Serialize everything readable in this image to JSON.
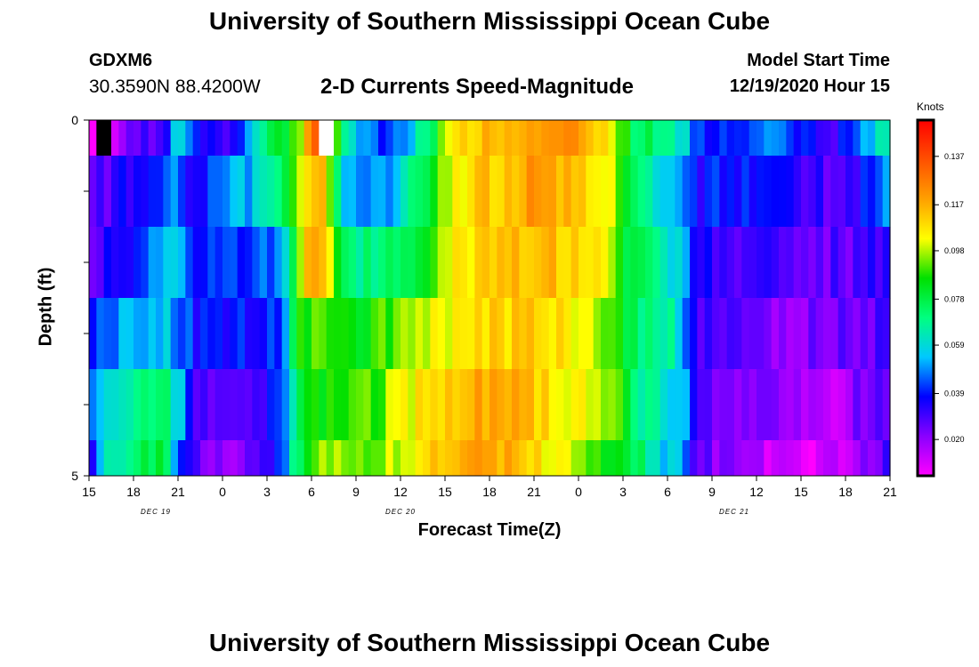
{
  "header": {
    "title_top": "University of Southern Mississippi Ocean Cube",
    "station_id": "GDXM6",
    "coords": "30.3590N 88.4200W",
    "subtitle": "2-D Currents Speed-Magnitude",
    "start_label": "Model Start Time",
    "start_value": "12/19/2020 Hour 15"
  },
  "footer": {
    "title_bottom": "University of Southern Mississippi Ocean Cube"
  },
  "chart_data": {
    "type": "heatmap",
    "xlabel": "Forecast Time(Z)",
    "ylabel": "Depth (ft)",
    "y_ticks": [
      "0",
      "5"
    ],
    "ylim": [
      0,
      5
    ],
    "x_tick_labels": [
      "15",
      "18",
      "21",
      "0",
      "3",
      "6",
      "9",
      "12",
      "15",
      "18",
      "21",
      "0",
      "3",
      "6",
      "9",
      "12",
      "15",
      "18",
      "21"
    ],
    "date_labels": [
      {
        "label": "DEC 19",
        "at_tick": 1.5
      },
      {
        "label": "DEC 20",
        "at_tick": 7
      },
      {
        "label": "DEC 21",
        "at_tick": 14.5
      }
    ],
    "colorbar": {
      "units": "Knots",
      "ticks": [
        "0.137",
        "0.117",
        "0.098",
        "0.078",
        "0.059",
        "0.039",
        "0.020"
      ],
      "tick_values": [
        0.137,
        0.117,
        0.098,
        0.078,
        0.059,
        0.039,
        0.02
      ],
      "range": [
        0.005,
        0.152
      ],
      "colors": [
        "#ff00ff",
        "#8a00ff",
        "#0000ff",
        "#00c8ff",
        "#00ff80",
        "#00e000",
        "#ffff00",
        "#ffa000",
        "#ff5000",
        "#ff0000"
      ]
    },
    "time_hours_range": [
      0,
      54
    ],
    "rows_top_to_bottom": [
      {
        "depth_band": [
          0,
          0.5
        ],
        "knots": [
          [
            0,
            0.005
          ],
          [
            1,
            0.009
          ],
          [
            3,
            0.028
          ],
          [
            5,
            0.03
          ],
          [
            6,
            0.06
          ],
          [
            7,
            0.04
          ],
          [
            9,
            0.03
          ],
          [
            11,
            0.055
          ],
          [
            12,
            0.07
          ],
          [
            14,
            0.09
          ],
          [
            15,
            0.125
          ],
          [
            16,
            0.155
          ],
          [
            17,
            0.07
          ],
          [
            18,
            0.055
          ],
          [
            19,
            0.05
          ],
          [
            20,
            0.035
          ],
          [
            21,
            0.05
          ],
          [
            22,
            0.06
          ],
          [
            23,
            0.07
          ],
          [
            24,
            0.1
          ],
          [
            25,
            0.11
          ],
          [
            28,
            0.115
          ],
          [
            30,
            0.12
          ],
          [
            33,
            0.12
          ],
          [
            35,
            0.11
          ],
          [
            36,
            0.09
          ],
          [
            37,
            0.07
          ],
          [
            38,
            0.075
          ],
          [
            39,
            0.07
          ],
          [
            40,
            0.06
          ],
          [
            41,
            0.045
          ],
          [
            42,
            0.038
          ],
          [
            44,
            0.045
          ],
          [
            46,
            0.05
          ],
          [
            48,
            0.04
          ],
          [
            50,
            0.03
          ],
          [
            52,
            0.045
          ],
          [
            54,
            0.07
          ]
        ]
      },
      {
        "depth_band": [
          0.5,
          1.5
        ],
        "knots": [
          [
            0,
            0.02
          ],
          [
            1,
            0.028
          ],
          [
            3,
            0.035
          ],
          [
            5,
            0.04
          ],
          [
            6,
            0.05
          ],
          [
            7,
            0.035
          ],
          [
            9,
            0.045
          ],
          [
            11,
            0.055
          ],
          [
            12,
            0.06
          ],
          [
            14,
            0.095
          ],
          [
            15,
            0.12
          ],
          [
            16,
            0.11
          ],
          [
            17,
            0.06
          ],
          [
            18,
            0.05
          ],
          [
            20,
            0.05
          ],
          [
            21,
            0.06
          ],
          [
            23,
            0.08
          ],
          [
            24,
            0.1
          ],
          [
            26,
            0.11
          ],
          [
            30,
            0.12
          ],
          [
            33,
            0.115
          ],
          [
            35,
            0.105
          ],
          [
            36,
            0.085
          ],
          [
            37,
            0.07
          ],
          [
            38,
            0.065
          ],
          [
            40,
            0.05
          ],
          [
            41,
            0.035
          ],
          [
            43,
            0.04
          ],
          [
            45,
            0.035
          ],
          [
            48,
            0.03
          ],
          [
            51,
            0.03
          ],
          [
            53,
            0.04
          ],
          [
            54,
            0.055
          ]
        ]
      },
      {
        "depth_band": [
          1.5,
          2.5
        ],
        "knots": [
          [
            0,
            0.015
          ],
          [
            1,
            0.038
          ],
          [
            3,
            0.04
          ],
          [
            5,
            0.055
          ],
          [
            6,
            0.06
          ],
          [
            7,
            0.04
          ],
          [
            9,
            0.04
          ],
          [
            11,
            0.04
          ],
          [
            13,
            0.05
          ],
          [
            14,
            0.09
          ],
          [
            15,
            0.12
          ],
          [
            16,
            0.115
          ],
          [
            17,
            0.075
          ],
          [
            18,
            0.07
          ],
          [
            20,
            0.07
          ],
          [
            22,
            0.08
          ],
          [
            24,
            0.1
          ],
          [
            26,
            0.11
          ],
          [
            30,
            0.115
          ],
          [
            33,
            0.11
          ],
          [
            35,
            0.1
          ],
          [
            36,
            0.08
          ],
          [
            37,
            0.075
          ],
          [
            38,
            0.07
          ],
          [
            40,
            0.055
          ],
          [
            41,
            0.035
          ],
          [
            43,
            0.03
          ],
          [
            46,
            0.028
          ],
          [
            49,
            0.025
          ],
          [
            52,
            0.028
          ],
          [
            54,
            0.035
          ]
        ]
      },
      {
        "depth_band": [
          2.5,
          3.5
        ],
        "knots": [
          [
            0,
            0.035
          ],
          [
            1,
            0.045
          ],
          [
            3,
            0.055
          ],
          [
            5,
            0.055
          ],
          [
            6,
            0.05
          ],
          [
            7,
            0.04
          ],
          [
            9,
            0.035
          ],
          [
            11,
            0.04
          ],
          [
            13,
            0.045
          ],
          [
            14,
            0.085
          ],
          [
            15,
            0.09
          ],
          [
            16,
            0.085
          ],
          [
            18,
            0.085
          ],
          [
            20,
            0.09
          ],
          [
            22,
            0.1
          ],
          [
            24,
            0.105
          ],
          [
            27,
            0.11
          ],
          [
            30,
            0.11
          ],
          [
            33,
            0.105
          ],
          [
            35,
            0.095
          ],
          [
            36,
            0.085
          ],
          [
            37,
            0.07
          ],
          [
            39,
            0.07
          ],
          [
            40,
            0.05
          ],
          [
            41,
            0.03
          ],
          [
            43,
            0.025
          ],
          [
            46,
            0.022
          ],
          [
            49,
            0.022
          ],
          [
            52,
            0.025
          ],
          [
            54,
            0.03
          ]
        ]
      },
      {
        "depth_band": [
          3.5,
          4.5
        ],
        "knots": [
          [
            0,
            0.04
          ],
          [
            1,
            0.06
          ],
          [
            3,
            0.07
          ],
          [
            5,
            0.075
          ],
          [
            6,
            0.06
          ],
          [
            7,
            0.03
          ],
          [
            9,
            0.025
          ],
          [
            11,
            0.03
          ],
          [
            13,
            0.04
          ],
          [
            14,
            0.075
          ],
          [
            15,
            0.085
          ],
          [
            17,
            0.09
          ],
          [
            19,
            0.09
          ],
          [
            21,
            0.1
          ],
          [
            23,
            0.11
          ],
          [
            26,
            0.12
          ],
          [
            29,
            0.115
          ],
          [
            32,
            0.105
          ],
          [
            34,
            0.1
          ],
          [
            36,
            0.09
          ],
          [
            37,
            0.07
          ],
          [
            38,
            0.065
          ],
          [
            40,
            0.055
          ],
          [
            41,
            0.03
          ],
          [
            43,
            0.025
          ],
          [
            45,
            0.02
          ],
          [
            48,
            0.015
          ],
          [
            50,
            0.015
          ],
          [
            52,
            0.022
          ],
          [
            54,
            0.028
          ]
        ]
      },
      {
        "depth_band": [
          4.5,
          5
        ],
        "knots": [
          [
            0,
            0.03
          ],
          [
            1,
            0.06
          ],
          [
            3,
            0.075
          ],
          [
            5,
            0.08
          ],
          [
            6,
            0.05
          ],
          [
            7,
            0.025
          ],
          [
            9,
            0.02
          ],
          [
            11,
            0.025
          ],
          [
            13,
            0.04
          ],
          [
            14,
            0.075
          ],
          [
            15,
            0.09
          ],
          [
            17,
            0.1
          ],
          [
            19,
            0.095
          ],
          [
            21,
            0.1
          ],
          [
            23,
            0.11
          ],
          [
            26,
            0.12
          ],
          [
            29,
            0.115
          ],
          [
            32,
            0.1
          ],
          [
            34,
            0.09
          ],
          [
            36,
            0.085
          ],
          [
            37,
            0.075
          ],
          [
            38,
            0.06
          ],
          [
            40,
            0.05
          ],
          [
            41,
            0.028
          ],
          [
            43,
            0.02
          ],
          [
            45,
            0.015
          ],
          [
            48,
            0.005
          ],
          [
            50,
            0.01
          ],
          [
            52,
            0.02
          ],
          [
            54,
            0.028
          ]
        ]
      }
    ],
    "missing_cells": [
      {
        "hour": 1,
        "row": 0,
        "color": "#000000"
      },
      {
        "hour": 16,
        "row": 0,
        "color": "#ffffff"
      }
    ]
  }
}
